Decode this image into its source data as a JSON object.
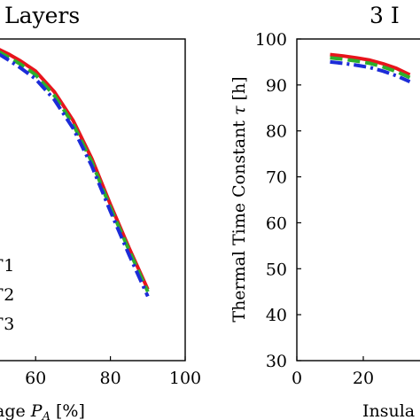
{
  "chart_data": [
    {
      "type": "line",
      "title": "Layers",
      "xlabel": "age P_A [%]",
      "ylabel": "",
      "xlim": [
        50,
        100
      ],
      "ylim": [
        30,
        100
      ],
      "xticks": [
        "60",
        "80",
        "100"
      ],
      "yticks": [],
      "grid": false,
      "legend": {
        "placement": "bottom-left",
        "entries": [
          "1",
          "2",
          "3"
        ]
      },
      "series": [
        {
          "name": "1",
          "color": "#e8141c",
          "style": "solid",
          "x": [
            50,
            53,
            56,
            60,
            65,
            70,
            75,
            80,
            85,
            90
          ],
          "y": [
            97.8,
            96.6,
            95.2,
            93.0,
            88.5,
            82.3,
            74.0,
            64.0,
            54.5,
            45.5
          ]
        },
        {
          "name": "2",
          "color": "#2cb02c",
          "style": "dashed",
          "x": [
            50,
            53,
            56,
            60,
            65,
            70,
            75,
            80,
            85,
            90
          ],
          "y": [
            97.3,
            95.9,
            94.5,
            92.2,
            87.7,
            81.5,
            73.3,
            63.3,
            54.0,
            45.0
          ]
        },
        {
          "name": "3",
          "color": "#1c2cd8",
          "style": "dashdot",
          "x": [
            50,
            53,
            56,
            60,
            65,
            70,
            75,
            80,
            85,
            90
          ],
          "y": [
            96.8,
            95.3,
            93.7,
            91.3,
            86.8,
            80.6,
            72.4,
            62.5,
            53.0,
            44.0
          ]
        }
      ]
    },
    {
      "type": "line",
      "title": "3 I",
      "xlabel": "Insula",
      "ylabel": "Thermal Time Constant τ [h]",
      "xlim": [
        0,
        40
      ],
      "ylim": [
        30,
        100
      ],
      "xticks": [
        "0",
        "20"
      ],
      "yticks": [
        "30",
        "40",
        "50",
        "60",
        "70",
        "80",
        "90",
        "100"
      ],
      "grid": false,
      "series": [
        {
          "name": "1",
          "color": "#e8141c",
          "style": "solid",
          "x": [
            10,
            14,
            18,
            22,
            26,
            30,
            34
          ],
          "y": [
            96.6,
            96.3,
            95.9,
            95.4,
            94.6,
            93.6,
            92.2
          ]
        },
        {
          "name": "2",
          "color": "#2cb02c",
          "style": "dashed",
          "x": [
            10,
            14,
            18,
            22,
            26,
            30,
            34
          ],
          "y": [
            95.9,
            95.6,
            95.2,
            94.7,
            93.9,
            92.9,
            91.6
          ]
        },
        {
          "name": "3",
          "color": "#1c2cd8",
          "style": "dashdot",
          "x": [
            10,
            14,
            18,
            22,
            26,
            30,
            34
          ],
          "y": [
            95.0,
            94.7,
            94.3,
            93.8,
            93.0,
            92.0,
            90.7
          ]
        }
      ]
    }
  ],
  "legend_prefix": "Γ"
}
